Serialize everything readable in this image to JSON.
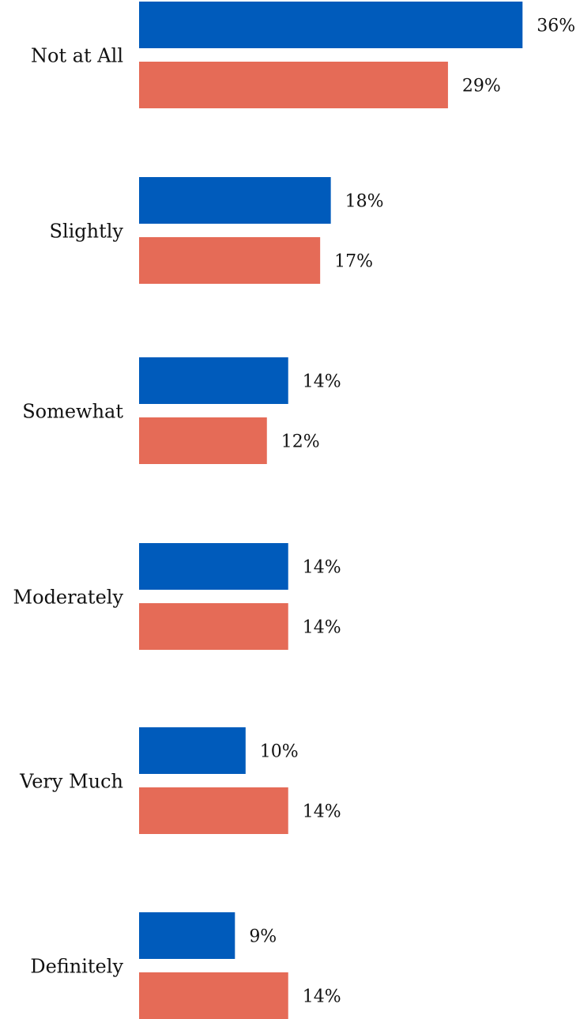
{
  "chart_data": {
    "type": "bar",
    "orientation": "horizontal",
    "categories": [
      "Not at All",
      "Slightly",
      "Somewhat",
      "Moderately",
      "Very Much",
      "Definitely"
    ],
    "series": [
      {
        "values": [
          36,
          18,
          14,
          14,
          10,
          9
        ],
        "labels": [
          "36%",
          "18%",
          "14%",
          "14%",
          "10%",
          "9%"
        ],
        "color": "#005BBB"
      },
      {
        "values": [
          29,
          17,
          12,
          14,
          14,
          14
        ],
        "labels": [
          "29%",
          "17%",
          "12%",
          "14%",
          "14%",
          "14%"
        ],
        "color": "#E56B57"
      }
    ],
    "value_unit": "%",
    "title": "",
    "xlabel": "",
    "ylabel": "",
    "xlim": [
      0,
      40
    ],
    "grid": false,
    "legend": "none"
  }
}
